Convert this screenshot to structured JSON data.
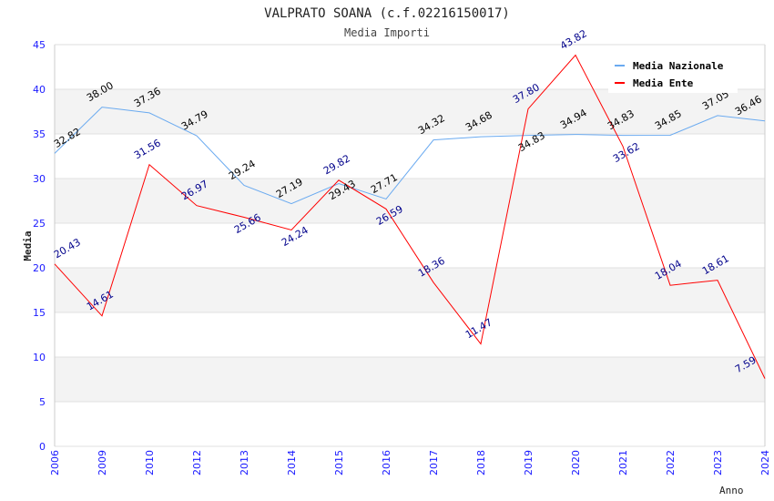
{
  "chart_data": {
    "type": "line",
    "title": "VALPRATO SOANA (c.f.02216150017)",
    "subtitle": "Media Importi",
    "xlabel": "Anno",
    "ylabel": "Media",
    "ylim": [
      0,
      45
    ],
    "yticks": [
      0,
      5,
      10,
      15,
      20,
      25,
      30,
      35,
      40,
      45
    ],
    "grid": true,
    "legend_position": "top-right",
    "categories": [
      "2006",
      "2009",
      "2010",
      "2012",
      "2013",
      "2014",
      "2015",
      "2016",
      "2017",
      "2018",
      "2019",
      "2020",
      "2021",
      "2022",
      "2023",
      "2024"
    ],
    "series": [
      {
        "name": "Media Nazionale",
        "color": "#6aaaf0",
        "label_color": "#000000",
        "values": [
          32.82,
          38.0,
          37.36,
          34.79,
          29.24,
          27.19,
          29.43,
          27.71,
          34.32,
          34.68,
          34.83,
          34.94,
          34.83,
          34.85,
          37.05,
          36.46
        ]
      },
      {
        "name": "Media Ente",
        "color": "#ff0000",
        "label_color": "#00008b",
        "values": [
          20.43,
          14.61,
          31.56,
          26.97,
          25.66,
          24.24,
          29.82,
          26.59,
          18.36,
          11.47,
          37.8,
          43.82,
          33.62,
          18.04,
          18.61,
          7.59
        ]
      }
    ]
  }
}
